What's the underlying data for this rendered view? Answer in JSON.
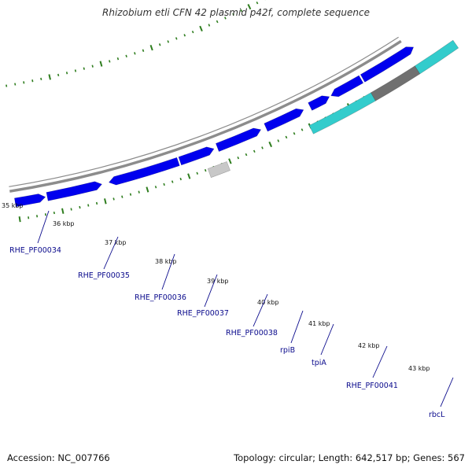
{
  "title": "Rhizobium etli CFN 42 plasmid p42f, complete sequence",
  "accession_label": "Accession: NC_007766",
  "summary_label": "Topology: circular; Length: 642,517 bp; Genes: 567",
  "colors": {
    "backbone": "#8c8c8c",
    "cds": "#0000ee",
    "pseudogene": "#c8c8c8",
    "rna": "#33cccc",
    "dark_feature": "#707070",
    "tick": "#2e7d1e",
    "label": "#0a0a8c"
  },
  "kbp_labels": [
    "35 kbp",
    "36 kbp",
    "37 kbp",
    "38 kbp",
    "39 kbp",
    "40 kbp",
    "41 kbp",
    "42 kbp",
    "43 kbp"
  ],
  "genes": [
    {
      "label": "RHE_PF00034"
    },
    {
      "label": "RHE_PF00035"
    },
    {
      "label": "RHE_PF00036"
    },
    {
      "label": "RHE_PF00037"
    },
    {
      "label": "RHE_PF00038"
    },
    {
      "label": "rpiB"
    },
    {
      "label": "tpiA"
    },
    {
      "label": "RHE_PF00041"
    },
    {
      "label": "rbcL"
    }
  ]
}
